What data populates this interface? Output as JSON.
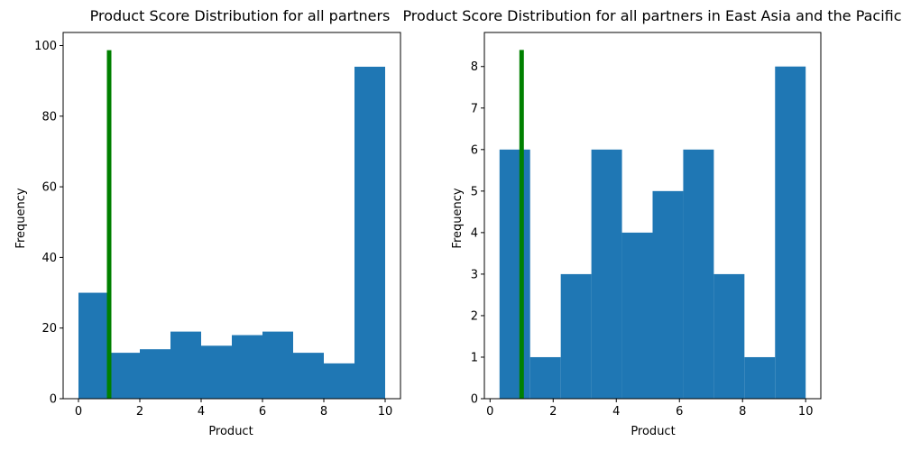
{
  "chart_data": [
    {
      "type": "bar",
      "title": "Product Score Distribution for all partners",
      "xlabel": "Product",
      "ylabel": "Frequency",
      "xlim": [
        -0.5,
        10.5
      ],
      "ylim": [
        0,
        103.7
      ],
      "xticks": [
        0,
        2,
        4,
        6,
        8,
        10
      ],
      "yticks": [
        0,
        20,
        40,
        60,
        80,
        100
      ],
      "bins": [
        {
          "x0": 0.0,
          "x1": 1.0,
          "value": 30
        },
        {
          "x0": 1.0,
          "x1": 2.0,
          "value": 13
        },
        {
          "x0": 2.0,
          "x1": 3.0,
          "value": 14
        },
        {
          "x0": 3.0,
          "x1": 4.0,
          "value": 19
        },
        {
          "x0": 4.0,
          "x1": 5.0,
          "value": 15
        },
        {
          "x0": 5.0,
          "x1": 6.0,
          "value": 18
        },
        {
          "x0": 6.0,
          "x1": 7.0,
          "value": 19
        },
        {
          "x0": 7.0,
          "x1": 8.0,
          "value": 13
        },
        {
          "x0": 8.0,
          "x1": 9.0,
          "value": 10
        },
        {
          "x0": 9.0,
          "x1": 10.0,
          "value": 94
        }
      ],
      "marker_line": {
        "x": 1.0,
        "y0": 0,
        "y1": 98.7,
        "color": "#008000"
      },
      "bar_color": "#1f77b4"
    },
    {
      "type": "bar",
      "title": "Product Score Distribution for all partners in East Asia and the Pacific",
      "xlabel": "Product",
      "ylabel": "Frequency",
      "xlim": [
        -0.18,
        10.48
      ],
      "ylim": [
        0,
        8.82
      ],
      "xticks": [
        0,
        2,
        4,
        6,
        8,
        10
      ],
      "yticks": [
        0,
        1,
        2,
        3,
        4,
        5,
        6,
        7,
        8
      ],
      "bins": [
        {
          "x0": 0.3,
          "x1": 1.27,
          "value": 6
        },
        {
          "x0": 1.27,
          "x1": 2.24,
          "value": 1
        },
        {
          "x0": 2.24,
          "x1": 3.21,
          "value": 3
        },
        {
          "x0": 3.21,
          "x1": 4.18,
          "value": 6
        },
        {
          "x0": 4.18,
          "x1": 5.15,
          "value": 4
        },
        {
          "x0": 5.15,
          "x1": 6.12,
          "value": 5
        },
        {
          "x0": 6.12,
          "x1": 7.09,
          "value": 6
        },
        {
          "x0": 7.09,
          "x1": 8.06,
          "value": 3
        },
        {
          "x0": 8.06,
          "x1": 9.03,
          "value": 1
        },
        {
          "x0": 9.03,
          "x1": 10.0,
          "value": 8
        }
      ],
      "marker_line": {
        "x": 1.0,
        "y0": 0,
        "y1": 8.4,
        "color": "#008000"
      },
      "bar_color": "#1f77b4"
    }
  ]
}
